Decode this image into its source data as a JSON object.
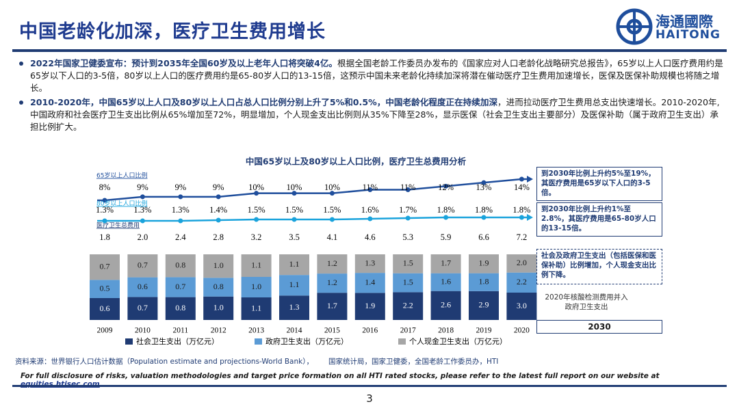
{
  "header": {
    "title": "中国老龄化加深，医疗卫生费用增长",
    "logo_cn": "海通國際",
    "logo_en": "HAITONG"
  },
  "bullets": [
    {
      "bold": "2022年国家卫健委宣布：预计到2035年全国60岁及以上老年人口将突破4亿。",
      "text": "根据全国老龄工作委员办发布的《国家应对人口老龄化战略研究总报告》，65岁以上人口医疗费用约是65岁以下人口的3-5倍，80岁以上人口的医疗费用约是65-80岁人口的13-15倍，这预示中国未来老龄化持续加深将潜在催动医疗卫生费用加速增长，医保及医保补助规模也将随之增长。"
    },
    {
      "bold": "2010-2020年，中国65岁以上人口及80岁以上人口占总人口比例分别上升了5%和0.5%，中国老龄化程度正在持续加深",
      "text": "，进而拉动医疗卫生费用总支出快速增长。2010-2020年,中国政府和社会医疗卫生支出比例从65%增加至72%，明显增加，个人现金支出比例则从35%下降至28%，显示医保（社会卫生支出主要部分）及医保补助（属于政府卫生支出）承担比例扩大。"
    }
  ],
  "chart_data": {
    "type": "bar",
    "stacked": true,
    "title": "中国65岁以上及80岁以上人口比例，医疗卫生总费用分析",
    "categories": [
      "2009",
      "2010",
      "2011",
      "2012",
      "2013",
      "2014",
      "2015",
      "2016",
      "2017",
      "2018",
      "2019",
      "2020"
    ],
    "series": [
      {
        "name": "社会卫生支出（万亿元）",
        "color": "#1f3b73",
        "values": [
          0.6,
          0.7,
          0.8,
          1.0,
          1.1,
          1.3,
          1.7,
          1.9,
          2.2,
          2.6,
          2.9,
          3.0
        ],
        "value_labels": [
          "0.6",
          "0.7",
          "0.8",
          "1.0",
          "1.1",
          "1.3",
          "1.7",
          "1.9",
          "2.2",
          "2.6",
          "2.9",
          "3.0"
        ]
      },
      {
        "name": "政府卫生支出（万亿元）",
        "color": "#5b9bd5",
        "values": [
          0.5,
          0.6,
          0.7,
          0.8,
          1.0,
          1.1,
          1.2,
          1.4,
          1.5,
          1.6,
          1.8,
          2.2
        ],
        "value_labels": [
          "0.5",
          "0.6",
          "0.7",
          "0.8",
          "1.0",
          "1.1",
          "1.2",
          "1.4",
          "1.5",
          "1.6",
          "1.8",
          "2.2"
        ]
      },
      {
        "name": "个人现金卫生支出（万亿元）",
        "color": "#a6a6a6",
        "values": [
          0.7,
          0.7,
          0.8,
          1.0,
          1.1,
          1.1,
          1.2,
          1.3,
          1.5,
          1.7,
          1.9,
          2.0
        ],
        "value_labels": [
          "0.7",
          "0.7",
          "0.8",
          "1.0",
          "1.1",
          "1.1",
          "1.2",
          "1.3",
          "1.5",
          "1.7",
          "1.9",
          "2.0"
        ]
      }
    ],
    "line_series": [
      {
        "name": "65岁以上人口比例",
        "color": "#1f4e9c",
        "values": [
          8,
          9,
          9,
          9,
          10,
          10,
          10,
          11,
          11,
          12,
          13,
          14
        ],
        "value_labels": [
          "8%",
          "9%",
          "9%",
          "9%",
          "10%",
          "10%",
          "10%",
          "11%",
          "11%",
          "12%",
          "13%",
          "14%"
        ]
      },
      {
        "name": "80岁以上人口比例",
        "color": "#1aa3dc",
        "values": [
          1.3,
          1.3,
          1.3,
          1.4,
          1.5,
          1.5,
          1.5,
          1.6,
          1.7,
          1.8,
          1.8,
          1.8
        ],
        "value_labels": [
          "1.3%",
          "1.3%",
          "1.3%",
          "1.4%",
          "1.5%",
          "1.5%",
          "1.5%",
          "1.6%",
          "1.7%",
          "1.8%",
          "1.8%",
          "1.8%"
        ]
      }
    ],
    "totals": {
      "name": "医疗卫生总费用",
      "values": [
        1.8,
        2.0,
        2.4,
        2.8,
        3.2,
        3.5,
        4.1,
        4.6,
        5.3,
        5.9,
        6.6,
        7.2
      ],
      "value_labels": [
        "1.8",
        "2.0",
        "2.4",
        "2.8",
        "3.2",
        "3.5",
        "4.1",
        "4.6",
        "5.3",
        "5.9",
        "6.6",
        "7.2"
      ]
    },
    "annotations": [
      "到2030年比例上升约5%至19%，其医疗费用是65岁以下人口的3-5倍。",
      "到2030年比例上升约1%至2.8%，其医疗费用是65-80岁人口的13-15倍。",
      "社会及政府卫生支出（包括医保和医保补助）比例增加，个人现金支出比例下降。",
      "2020年核酸检测费用并入政府卫生支出",
      "2030"
    ]
  },
  "footer": {
    "source": "资料来源：世界银行人口估计数据（Population estimate and projections-World Bank），",
    "source2": "国家统计局，国家卫健委，全国老龄工作委员办，HTI",
    "disclosure": "For full disclosure of risks, valuation methodologies and target price formation on all HTI rated stocks, please refer to the latest full report on our website at ",
    "link": "equities.htisec.com",
    "page": "3"
  }
}
